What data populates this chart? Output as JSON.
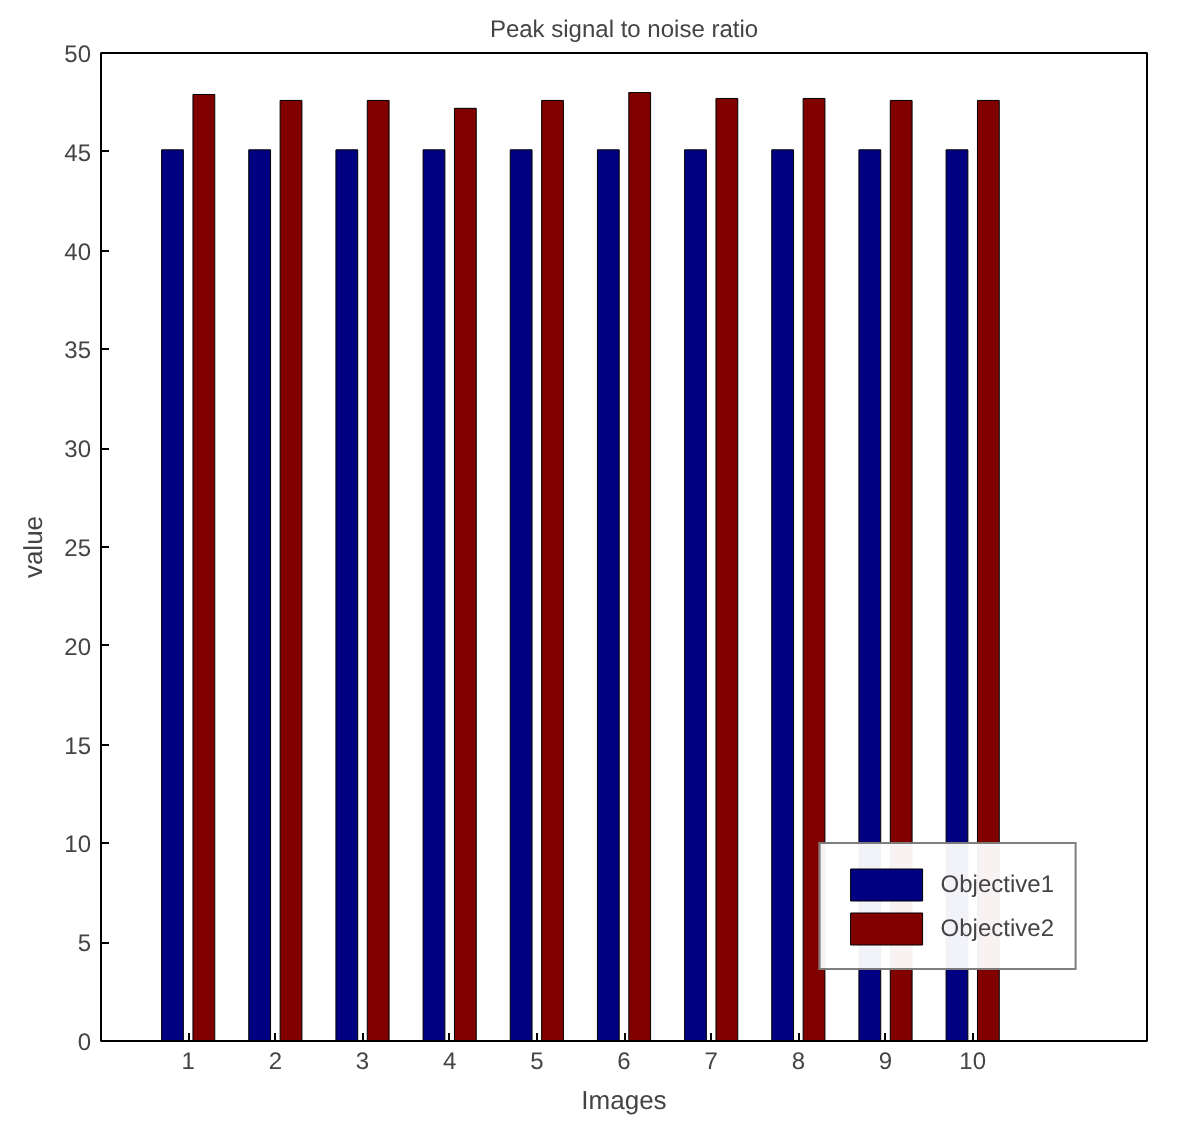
{
  "chart_data": {
    "type": "bar",
    "title": "Peak signal to noise ratio",
    "xlabel": "Images",
    "ylabel": "value",
    "x": [
      1,
      2,
      3,
      4,
      5,
      6,
      7,
      8,
      9,
      10
    ],
    "series": [
      {
        "name": "Objective1",
        "color": "#000080",
        "values": [
          45.1,
          45.1,
          45.1,
          45.1,
          45.1,
          45.1,
          45.1,
          45.1,
          45.1,
          45.1
        ]
      },
      {
        "name": "Objective2",
        "color": "#800000",
        "values": [
          47.9,
          47.6,
          47.6,
          47.2,
          47.6,
          48.0,
          47.7,
          47.7,
          47.6,
          47.6
        ]
      }
    ],
    "xlim": [
      0,
      12
    ],
    "xticks": [
      1,
      2,
      3,
      4,
      5,
      6,
      7,
      8,
      9,
      10
    ],
    "ylim": [
      0,
      50
    ],
    "yticks": [
      0,
      5,
      10,
      15,
      20,
      25,
      30,
      35,
      40,
      45,
      50
    ],
    "grid": false,
    "legend": "bottom right"
  }
}
